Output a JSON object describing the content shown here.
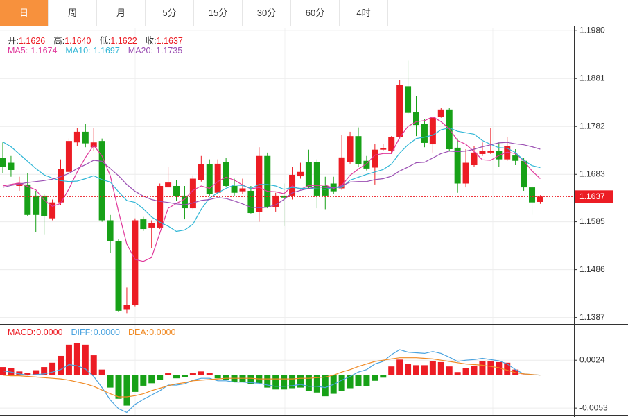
{
  "tabs": [
    "日",
    "周",
    "月",
    "5分",
    "15分",
    "30分",
    "60分",
    "4时"
  ],
  "active_tab": 0,
  "chart_data": [
    {
      "type": "candlestick",
      "info": [
        {
          "name": "开:",
          "value": 1.1626
        },
        {
          "name": "高:",
          "value": 1.164,
          "label": "1.1640"
        },
        {
          "name": "低:",
          "value": 1.1622
        },
        {
          "name": "收:",
          "value": 1.1637
        }
      ],
      "up_color": "#ec1c24",
      "down_color": "#17a117",
      "open": [
        1.1717,
        1.1707,
        1.1659,
        1.1662,
        1.1639,
        1.1639,
        1.1592,
        1.1625,
        1.1688,
        1.1749,
        1.1771,
        1.1739,
        1.1752,
        1.1588,
        1.1545,
        1.1403,
        1.1413,
        1.159,
        1.1573,
        1.1573,
        1.1656,
        1.1659,
        1.1639,
        1.1613,
        1.1671,
        1.1704,
        1.1645,
        1.1709,
        1.1659,
        1.1648,
        1.1649,
        1.1605,
        1.1721,
        1.1616,
        1.1639,
        1.1639,
        1.1679,
        1.1709,
        1.1709,
        1.1659,
        1.1664,
        1.1654,
        1.1708,
        1.1762,
        1.1711,
        1.1697,
        1.1734,
        1.1731,
        1.176,
        1.1865,
        1.1811,
        1.1788,
        1.1745,
        1.1802,
        1.1817,
        1.1738,
        1.1664,
        1.1702,
        1.1725,
        1.1728,
        1.1731,
        1.1714,
        1.1722,
        1.1711,
        1.1656,
        1.1626
      ],
      "high": [
        1.1749,
        1.1721,
        1.1678,
        1.1685,
        1.1649,
        1.1642,
        1.1631,
        1.1714,
        1.1757,
        1.1778,
        1.1788,
        1.1778,
        1.1757,
        1.1599,
        1.1549,
        1.1449,
        1.1592,
        1.1595,
        1.1588,
        1.1664,
        1.1699,
        1.1671,
        1.1659,
        1.1681,
        1.1721,
        1.1714,
        1.1714,
        1.1717,
        1.1674,
        1.1674,
        1.1659,
        1.1739,
        1.1728,
        1.1645,
        1.1664,
        1.1699,
        1.1707,
        1.1734,
        1.1714,
        1.1678,
        1.1678,
        1.1764,
        1.1771,
        1.178,
        1.1721,
        1.1745,
        1.1745,
        1.1762,
        1.1878,
        1.1918,
        1.1845,
        1.1797,
        1.1802,
        1.1821,
        1.1821,
        1.1757,
        1.1735,
        1.1742,
        1.1749,
        1.1778,
        1.1749,
        1.176,
        1.1735,
        1.1717,
        1.1659,
        1.164
      ],
      "low": [
        1.1685,
        1.1678,
        1.1649,
        1.1596,
        1.1563,
        1.1559,
        1.1588,
        1.1619,
        1.1685,
        1.1742,
        1.1739,
        1.1731,
        1.1585,
        1.152,
        1.1399,
        1.1396,
        1.141,
        1.1566,
        1.153,
        1.157,
        1.1656,
        1.1628,
        1.159,
        1.1611,
        1.1668,
        1.1639,
        1.1642,
        1.1656,
        1.1639,
        1.1642,
        1.1602,
        1.1585,
        1.1613,
        1.1606,
        1.1576,
        1.1631,
        1.1674,
        1.1654,
        1.1613,
        1.1611,
        1.1642,
        1.1651,
        1.1705,
        1.1699,
        1.1691,
        1.1662,
        1.1731,
        1.1725,
        1.1757,
        1.1807,
        1.1762,
        1.1739,
        1.1728,
        1.18,
        1.1731,
        1.1645,
        1.1656,
        1.1699,
        1.1721,
        1.1725,
        1.1699,
        1.1711,
        1.1702,
        1.1649,
        1.1599,
        1.1622
      ],
      "close": [
        1.1699,
        1.1692,
        1.1665,
        1.1599,
        1.1599,
        1.1596,
        1.1625,
        1.1694,
        1.1752,
        1.1771,
        1.1747,
        1.1749,
        1.1588,
        1.1545,
        1.1401,
        1.1413,
        1.1588,
        1.157,
        1.1582,
        1.1659,
        1.1666,
        1.1638,
        1.1613,
        1.1674,
        1.1704,
        1.1642,
        1.1705,
        1.1659,
        1.1645,
        1.1654,
        1.1603,
        1.1721,
        1.1616,
        1.1639,
        1.1635,
        1.1682,
        1.1688,
        1.1656,
        1.1639,
        1.1639,
        1.1648,
        1.1718,
        1.1762,
        1.1704,
        1.1695,
        1.1734,
        1.1737,
        1.176,
        1.1868,
        1.181,
        1.1785,
        1.1748,
        1.18,
        1.1817,
        1.1735,
        1.1664,
        1.1707,
        1.1728,
        1.1732,
        1.1731,
        1.1714,
        1.1742,
        1.1711,
        1.1656,
        1.1625,
        1.1637
      ],
      "series": [
        {
          "name": "MA5:",
          "color": "#e0389b",
          "values": [
            1.1659,
            1.1662,
            1.1665,
            1.1658,
            1.1651,
            1.163,
            1.1617,
            1.1623,
            1.1653,
            1.1688,
            1.1718,
            1.1743,
            1.1721,
            1.168,
            1.1606,
            1.1539,
            1.1507,
            1.1503,
            1.1511,
            1.1562,
            1.1613,
            1.1623,
            1.1632,
            1.165,
            1.1659,
            1.1654,
            1.1668,
            1.1677,
            1.1671,
            1.1661,
            1.1653,
            1.1656,
            1.1648,
            1.1647,
            1.1643,
            1.1659,
            1.1652,
            1.166,
            1.166,
            1.1661,
            1.1654,
            1.166,
            1.1681,
            1.1694,
            1.1705,
            1.1723,
            1.1726,
            1.1726,
            1.1759,
            1.1782,
            1.1792,
            1.1794,
            1.1802,
            1.1792,
            1.1777,
            1.1753,
            1.1745,
            1.173,
            1.1713,
            1.1712,
            1.1722,
            1.1729,
            1.1726,
            1.1711,
            1.169,
            1.1674
          ]
        },
        {
          "name": "MA10:",
          "color": "#2fb6d6",
          "values": [
            1.175,
            1.174,
            1.1725,
            1.171,
            1.1695,
            1.1682,
            1.1675,
            1.167,
            1.1668,
            1.1669,
            1.1674,
            1.168,
            1.1672,
            1.1667,
            1.1647,
            1.1629,
            1.1625,
            1.1612,
            1.1595,
            1.1584,
            1.1576,
            1.1565,
            1.1568,
            1.158,
            1.1611,
            1.1634,
            1.1645,
            1.1654,
            1.1661,
            1.166,
            1.1654,
            1.1662,
            1.1662,
            1.1659,
            1.1652,
            1.1656,
            1.1654,
            1.1654,
            1.1653,
            1.1652,
            1.1656,
            1.1656,
            1.1671,
            1.1677,
            1.1683,
            1.1688,
            1.1693,
            1.1704,
            1.1727,
            1.1744,
            1.1757,
            1.176,
            1.1764,
            1.1775,
            1.1779,
            1.1772,
            1.1769,
            1.1766,
            1.1753,
            1.1745,
            1.1738,
            1.1737,
            1.1728,
            1.1712,
            1.1701,
            1.1697
          ]
        },
        {
          "name": "MA20:",
          "color": "#9b4fb3",
          "values": [
            1.1656,
            1.166,
            1.1663,
            1.1666,
            1.1668,
            1.167,
            1.1673,
            1.1678,
            1.1685,
            1.1695,
            1.1703,
            1.1712,
            1.171,
            1.1695,
            1.168,
            1.1662,
            1.1648,
            1.1638,
            1.1631,
            1.1627,
            1.1625,
            1.1622,
            1.162,
            1.1624,
            1.1629,
            1.1631,
            1.1635,
            1.1633,
            1.1628,
            1.1622,
            1.1615,
            1.1614,
            1.1615,
            1.162,
            1.1631,
            1.1645,
            1.165,
            1.1654,
            1.1657,
            1.1656,
            1.1655,
            1.1659,
            1.1667,
            1.1668,
            1.1668,
            1.1672,
            1.1674,
            1.1679,
            1.169,
            1.1698,
            1.1707,
            1.1708,
            1.1717,
            1.1726,
            1.1731,
            1.173,
            1.1731,
            1.1735,
            1.174,
            1.1744,
            1.1748,
            1.1749,
            1.1746,
            1.1744,
            1.174,
            1.1735
          ]
        }
      ],
      "ylim": [
        1.1375,
        1.1986
      ],
      "yticks": [
        {
          "value": 1.198,
          "label": "1.1980"
        },
        1.1881,
        1.1782,
        1.1683,
        1.1585,
        1.1486,
        1.1387
      ],
      "grid": true
    },
    {
      "type": "macd",
      "up_color": "#ec1c24",
      "down_color": "#17a117",
      "series": [
        {
          "name": "MACD:",
          "color": "#ec1c24",
          "kind": "bar",
          "current": {
            "value": 0,
            "label": "0.0000"
          },
          "values": [
            0.0013,
            0.0011,
            0.0006,
            0.0004,
            0.0008,
            0.0013,
            0.002,
            0.0031,
            0.0049,
            0.0052,
            0.0049,
            0.0032,
            0.0009,
            -0.002,
            -0.0038,
            -0.0049,
            -0.0027,
            -0.0017,
            -0.0013,
            -0.0008,
            0.0003,
            -0.0005,
            -0.0003,
            0.0003,
            0.0006,
            0.0004,
            -0.0005,
            -0.0008,
            -0.0011,
            -0.0011,
            -0.0014,
            -0.0013,
            -0.002,
            -0.0023,
            -0.0023,
            -0.0021,
            -0.002,
            -0.0025,
            -0.0028,
            -0.0034,
            -0.003,
            -0.0025,
            -0.0021,
            -0.0018,
            -0.0018,
            -0.0009,
            -0.0004,
            0.0014,
            0.0025,
            0.0018,
            0.0016,
            0.0016,
            0.0023,
            0.0021,
            0.0014,
            0.0005,
            0.0011,
            0.0015,
            0.0022,
            0.0022,
            0.0021,
            0.002,
            0.0009,
            0.0001,
            0,
            0
          ]
        },
        {
          "name": "DIFF:",
          "color": "#4aa3df",
          "kind": "line",
          "current": {
            "value": 0,
            "label": "0.0000"
          },
          "values": [
            0.0007,
            0.0005,
            0.0002,
            0,
            0.0001,
            0.0002,
            0.0005,
            0.0009,
            0.0017,
            0.0015,
            0.001,
            -0.0002,
            -0.002,
            -0.004,
            -0.0054,
            -0.006,
            -0.0047,
            -0.0039,
            -0.0032,
            -0.0025,
            -0.0016,
            -0.0016,
            -0.0014,
            -0.0008,
            -0.0005,
            -0.0005,
            -0.0009,
            -0.0009,
            -0.0011,
            -0.0011,
            -0.0012,
            -0.0013,
            -0.0016,
            -0.0018,
            -0.0018,
            -0.0017,
            -0.0015,
            -0.0018,
            -0.0018,
            -0.002,
            -0.0015,
            -0.0008,
            -0.0002,
            0.0005,
            0.0009,
            0.0018,
            0.0022,
            0.0033,
            0.0041,
            0.0037,
            0.0036,
            0.0035,
            0.0038,
            0.0035,
            0.0029,
            0.0022,
            0.0024,
            0.0025,
            0.0027,
            0.0025,
            0.0023,
            0.0018,
            0.0009,
            0.0002,
            0.0001,
            0
          ]
        },
        {
          "name": "DEA:",
          "color": "#f08a24",
          "kind": "line",
          "current": {
            "value": 0,
            "label": "0.0000"
          },
          "values": [
            0,
            -0.0001,
            -0.0001,
            -0.0002,
            -0.0003,
            -0.0004,
            -0.0005,
            -0.0006,
            -0.0008,
            -0.0011,
            -0.0014,
            -0.0018,
            -0.0024,
            -0.003,
            -0.0035,
            -0.0035,
            -0.0033,
            -0.003,
            -0.0025,
            -0.0021,
            -0.0017,
            -0.0014,
            -0.0012,
            -0.0009,
            -0.0008,
            -0.0007,
            -0.0006,
            -0.0005,
            -0.0005,
            -0.0005,
            -0.0005,
            -0.0006,
            -0.0006,
            -0.0006,
            -0.0006,
            -0.0006,
            -0.0005,
            -0.0005,
            -0.0004,
            -0.0003,
            0,
            0.0005,
            0.0009,
            0.0014,
            0.0018,
            0.0022,
            0.0024,
            0.0026,
            0.0028,
            0.0028,
            0.0028,
            0.0027,
            0.0026,
            0.0024,
            0.0022,
            0.002,
            0.0018,
            0.0017,
            0.0016,
            0.0014,
            0.0012,
            0.0008,
            0.0004,
            0.0002,
            0.0001,
            0
          ]
        }
      ],
      "ylim": [
        -0.0064,
        0.0079
      ],
      "yticks": [
        0.0024,
        -0.0053
      ],
      "grid": true
    }
  ]
}
